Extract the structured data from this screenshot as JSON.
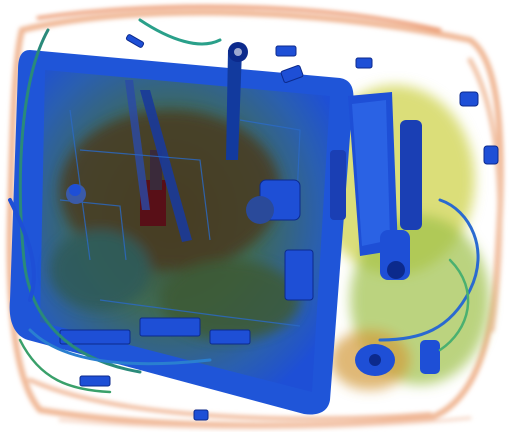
{
  "scan": {
    "background": "#ffffff",
    "palette": {
      "organic": "#e0683c",
      "organic_light": "#f4c2a6",
      "mixed": "#7fae3a",
      "mixed_yellow": "#d6c94a",
      "metal": "#1e4fd6",
      "metal_dark": "#0c2a8c",
      "dense": "#5a0a16",
      "board": "#3a4d6a"
    },
    "objects": [
      "bag-outline",
      "laptop-board",
      "cables",
      "device-right",
      "clips",
      "gears"
    ]
  }
}
